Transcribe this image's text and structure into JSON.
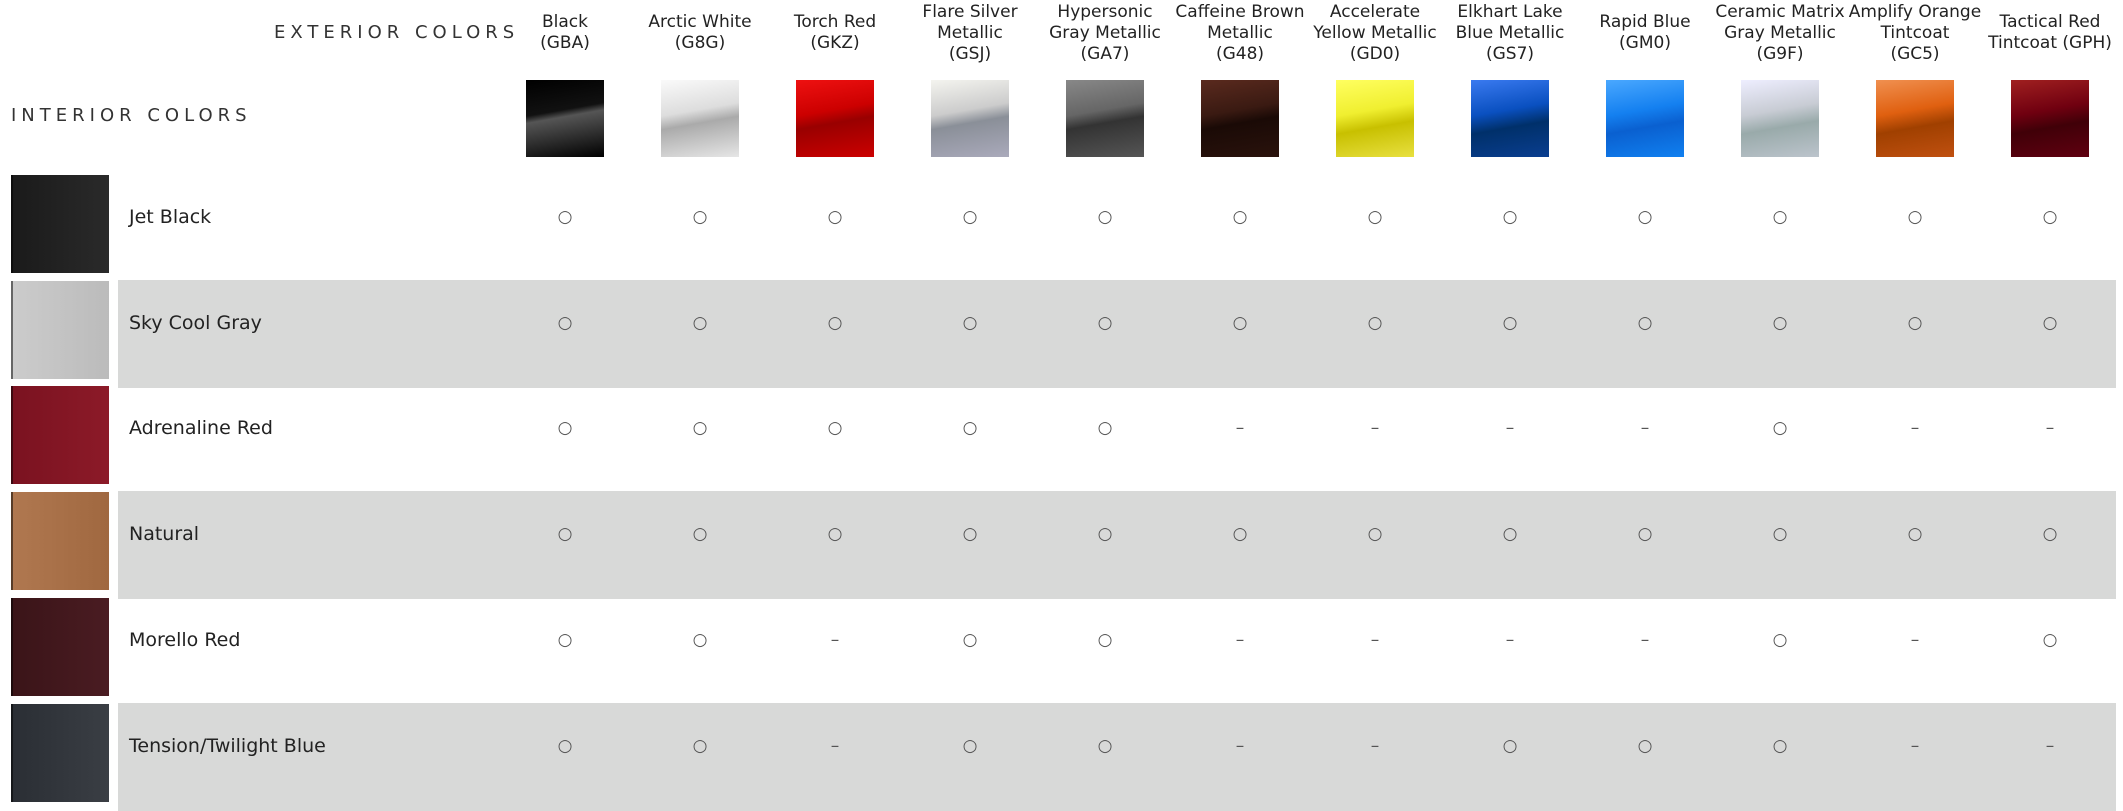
{
  "header": {
    "exterior_title": "EXTERIOR COLORS",
    "interior_title": "INTERIOR COLORS"
  },
  "exterior_colors": [
    {
      "lines": [
        "Black",
        "(GBA)"
      ]
    },
    {
      "lines": [
        "Arctic White",
        "(G8G)"
      ]
    },
    {
      "lines": [
        "Torch Red",
        "(GKZ)"
      ]
    },
    {
      "lines": [
        "Flare Silver",
        "Metallic",
        "(GSJ)"
      ]
    },
    {
      "lines": [
        "Hypersonic",
        "Gray Metallic",
        "(GA7)"
      ]
    },
    {
      "lines": [
        "Caffeine Brown",
        "Metallic",
        "(G48)"
      ]
    },
    {
      "lines": [
        "Accelerate",
        "Yellow Metallic",
        "(GD0)"
      ]
    },
    {
      "lines": [
        "Elkhart Lake",
        "Blue Metallic",
        "(GS7)"
      ]
    },
    {
      "lines": [
        "Rapid Blue",
        "(GM0)"
      ]
    },
    {
      "lines": [
        "Ceramic Matrix",
        "Gray Metallic",
        "(G9F)"
      ]
    },
    {
      "lines": [
        "Amplify Orange",
        "Tintcoat",
        "(GC5)"
      ]
    },
    {
      "lines": [
        "Tactical Red",
        "Tintcoat (GPH)"
      ]
    }
  ],
  "interior_colors": [
    {
      "name": "Jet Black",
      "cells": [
        "○",
        "○",
        "○",
        "○",
        "○",
        "○",
        "○",
        "○",
        "○",
        "○",
        "○",
        "○"
      ]
    },
    {
      "name": "Sky Cool Gray",
      "cells": [
        "○",
        "○",
        "○",
        "○",
        "○",
        "○",
        "○",
        "○",
        "○",
        "○",
        "○",
        "○"
      ]
    },
    {
      "name": "Adrenaline Red",
      "cells": [
        "○",
        "○",
        "○",
        "○",
        "○",
        "–",
        "–",
        "–",
        "–",
        "○",
        "–",
        "–"
      ]
    },
    {
      "name": "Natural",
      "cells": [
        "○",
        "○",
        "○",
        "○",
        "○",
        "○",
        "○",
        "○",
        "○",
        "○",
        "○",
        "○"
      ]
    },
    {
      "name": "Morello Red",
      "cells": [
        "○",
        "○",
        "–",
        "○",
        "○",
        "–",
        "–",
        "–",
        "–",
        "○",
        "–",
        "○"
      ]
    },
    {
      "name": "Tension/Twilight Blue",
      "cells": [
        "○",
        "○",
        "–",
        "○",
        "○",
        "–",
        "–",
        "○",
        "○",
        "○",
        "–",
        "–"
      ]
    }
  ]
}
